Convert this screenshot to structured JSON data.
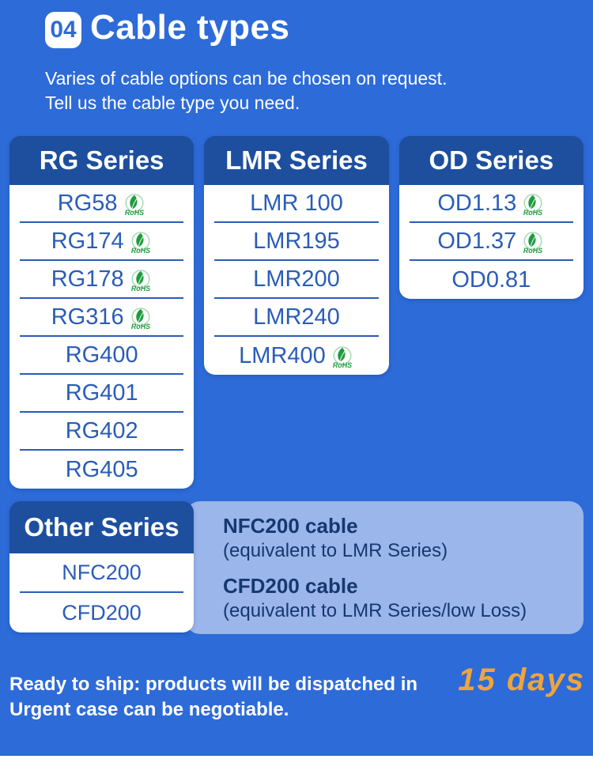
{
  "header": {
    "badge": "04",
    "title": "Cable types",
    "subtitle_line1": "Varies of cable options can be chosen on request.",
    "subtitle_line2": "Tell us the cable type you need."
  },
  "rohs_label": "RoHS",
  "series_cards": [
    {
      "title": "RG Series",
      "items": [
        {
          "label": "RG58",
          "rohs": true
        },
        {
          "label": "RG174",
          "rohs": true
        },
        {
          "label": "RG178",
          "rohs": true
        },
        {
          "label": "RG316",
          "rohs": true
        },
        {
          "label": "RG400",
          "rohs": false
        },
        {
          "label": "RG401",
          "rohs": false
        },
        {
          "label": "RG402",
          "rohs": false
        },
        {
          "label": "RG405",
          "rohs": false
        }
      ]
    },
    {
      "title": "LMR Series",
      "items": [
        {
          "label": "LMR 100",
          "rohs": false
        },
        {
          "label": "LMR195",
          "rohs": false
        },
        {
          "label": "LMR200",
          "rohs": false
        },
        {
          "label": "LMR240",
          "rohs": false
        },
        {
          "label": "LMR400",
          "rohs": true
        }
      ]
    },
    {
      "title": "OD Series",
      "items": [
        {
          "label": "OD1.13",
          "rohs": true
        },
        {
          "label": "OD1.37",
          "rohs": true
        },
        {
          "label": "OD0.81",
          "rohs": false
        }
      ]
    }
  ],
  "other_series": {
    "title": "Other Series",
    "items": [
      "NFC200",
      "CFD200"
    ],
    "notes": [
      {
        "name": "NFC200 cable",
        "desc": "(equivalent to LMR Series)"
      },
      {
        "name": "CFD200 cable",
        "desc": "(equivalent to LMR Series/low Loss)"
      }
    ]
  },
  "footer": {
    "ready_text": "Ready to ship: products will be dispatched in",
    "highlight": "15 days",
    "urgent_text": "Urgent case can be negotiable."
  },
  "colors": {
    "background": "#2d6bd8",
    "card_header": "#1d4f9e",
    "item_text": "#2a5cb8",
    "panel_bg": "#9ab6ea",
    "panel_text": "#16386f",
    "highlight_orange": "#f0a43c",
    "rohs_green": "#1f9c3e",
    "white": "#ffffff"
  }
}
